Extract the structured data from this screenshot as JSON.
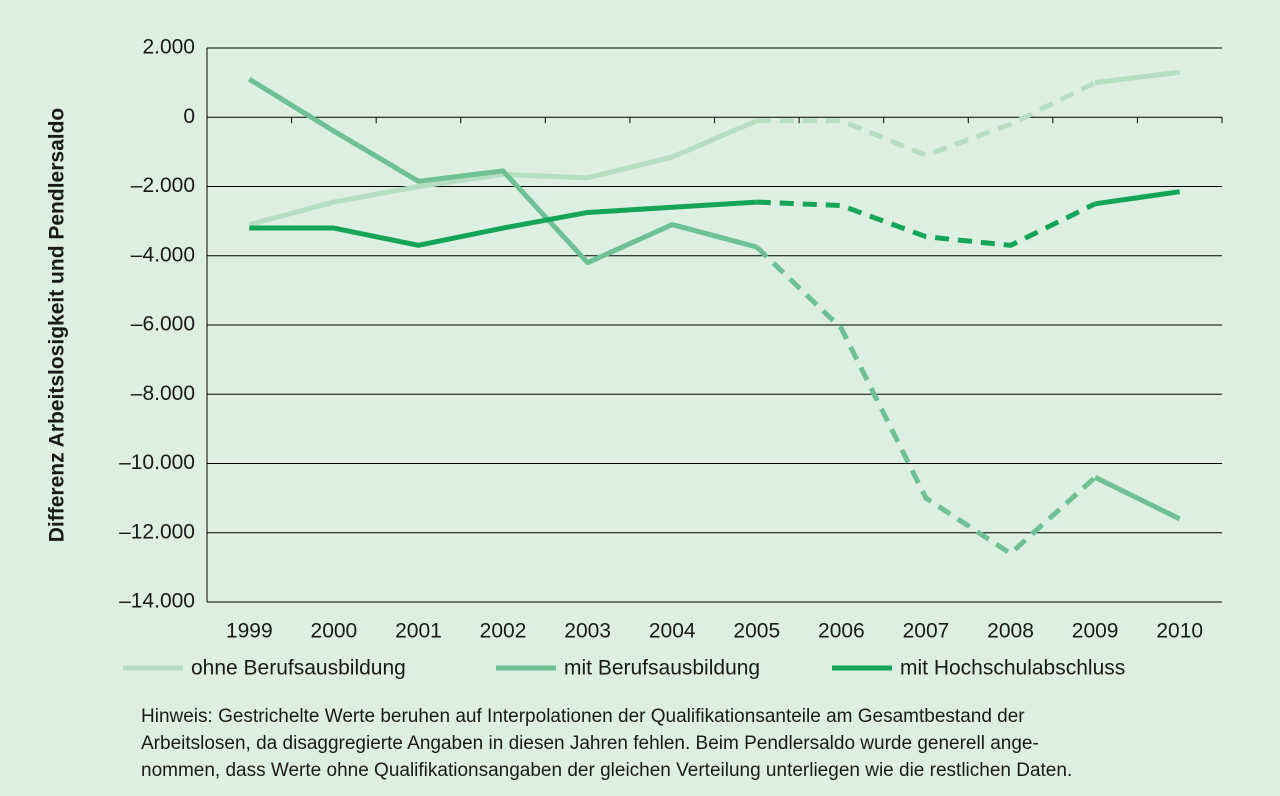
{
  "chart_data": {
    "type": "line",
    "y_label": "Differenz Arbeitslosigkeit und Pendlersaldo",
    "categories": [
      "1999",
      "2000",
      "2001",
      "2002",
      "2003",
      "2004",
      "2005",
      "2006",
      "2007",
      "2008",
      "2009",
      "2010"
    ],
    "series": [
      {
        "name": "ohne Berufsausbildung",
        "color": "#b7ddc3",
        "values": [
          -3100,
          -2450,
          -2000,
          -1650,
          -1750,
          -1150,
          -100,
          -100,
          -1100,
          -200,
          1000,
          1300
        ]
      },
      {
        "name": "mit Berufsausbildung",
        "color": "#6dc193",
        "values": [
          1100,
          -400,
          -1850,
          -1550,
          -4200,
          -3100,
          -3750,
          -6100,
          -11000,
          -12600,
          -10400,
          -11600
        ]
      },
      {
        "name": "mit Hochschulabschluss",
        "color": "#16a558",
        "values": [
          -3200,
          -3200,
          -3700,
          -3200,
          -2750,
          -2600,
          -2450,
          -2550,
          -3450,
          -3700,
          -2500,
          -2150
        ]
      }
    ],
    "dashed_categories": [
      "2006",
      "2007",
      "2008"
    ],
    "ylim": [
      -14000,
      2000
    ],
    "yticks": [
      {
        "value": -14000,
        "label": "–14.000"
      },
      {
        "value": -12000,
        "label": "–12.000"
      },
      {
        "value": -10000,
        "label": "–10.000"
      },
      {
        "value": -8000,
        "label": "–8.000"
      },
      {
        "value": -6000,
        "label": "–6.000"
      },
      {
        "value": -4000,
        "label": "–4.000"
      },
      {
        "value": -2000,
        "label": "–2.000"
      },
      0,
      {
        "value": 2000,
        "label": "2.000"
      }
    ],
    "grid": true,
    "note": [
      "Hinweis: Gestrichelte Werte beruhen auf Interpolationen der Qualifikationsanteile am Gesamtbestand der",
      "Arbeitslosen, da disaggregierte Angaben in diesen Jahren fehlen. Beim Pendlersaldo wurde generell ange-",
      "nommen, dass Werte ohne Qualifikationsangaben der gleichen Verteilung unterliegen wie die restlichen Daten."
    ]
  }
}
